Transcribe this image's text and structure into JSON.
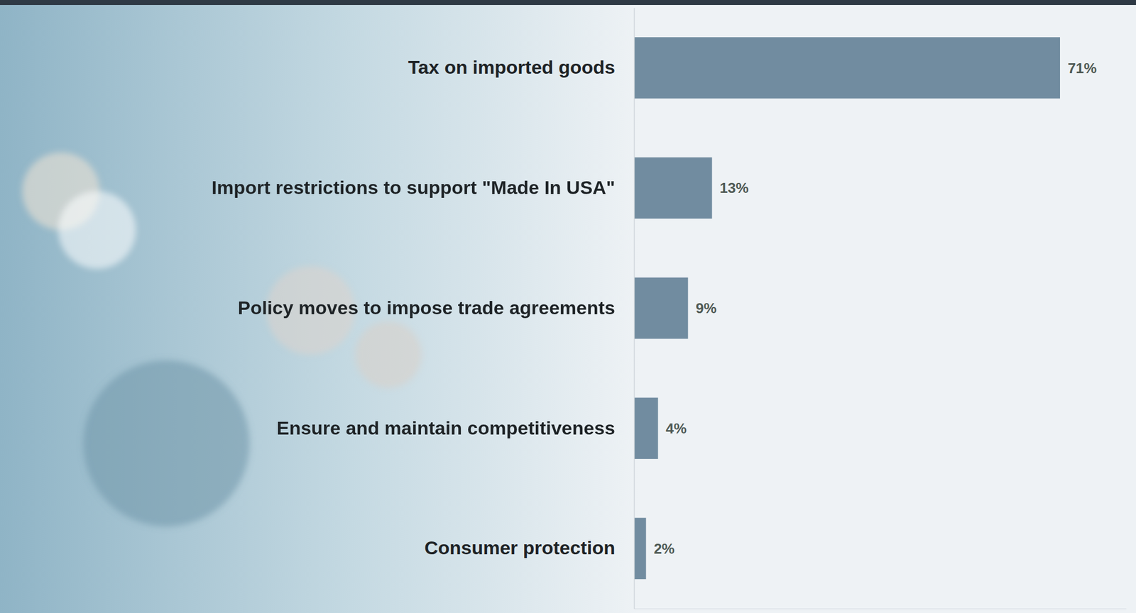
{
  "chart_data": {
    "type": "bar",
    "orientation": "horizontal",
    "categories": [
      "Tax on imported goods",
      "Import restrictions to support \"Made In USA\"",
      "Policy moves to impose trade agreements",
      "Ensure and maintain competitiveness",
      "Consumer protection"
    ],
    "values": [
      71,
      13,
      9,
      4,
      2
    ],
    "value_labels": [
      "71%",
      "13%",
      "9%",
      "4%",
      "2%"
    ],
    "data_labels": true,
    "color": "#718ca0",
    "xlim": [
      0,
      82
    ],
    "xticks": [],
    "tick_labels": "y",
    "grid": false
  }
}
